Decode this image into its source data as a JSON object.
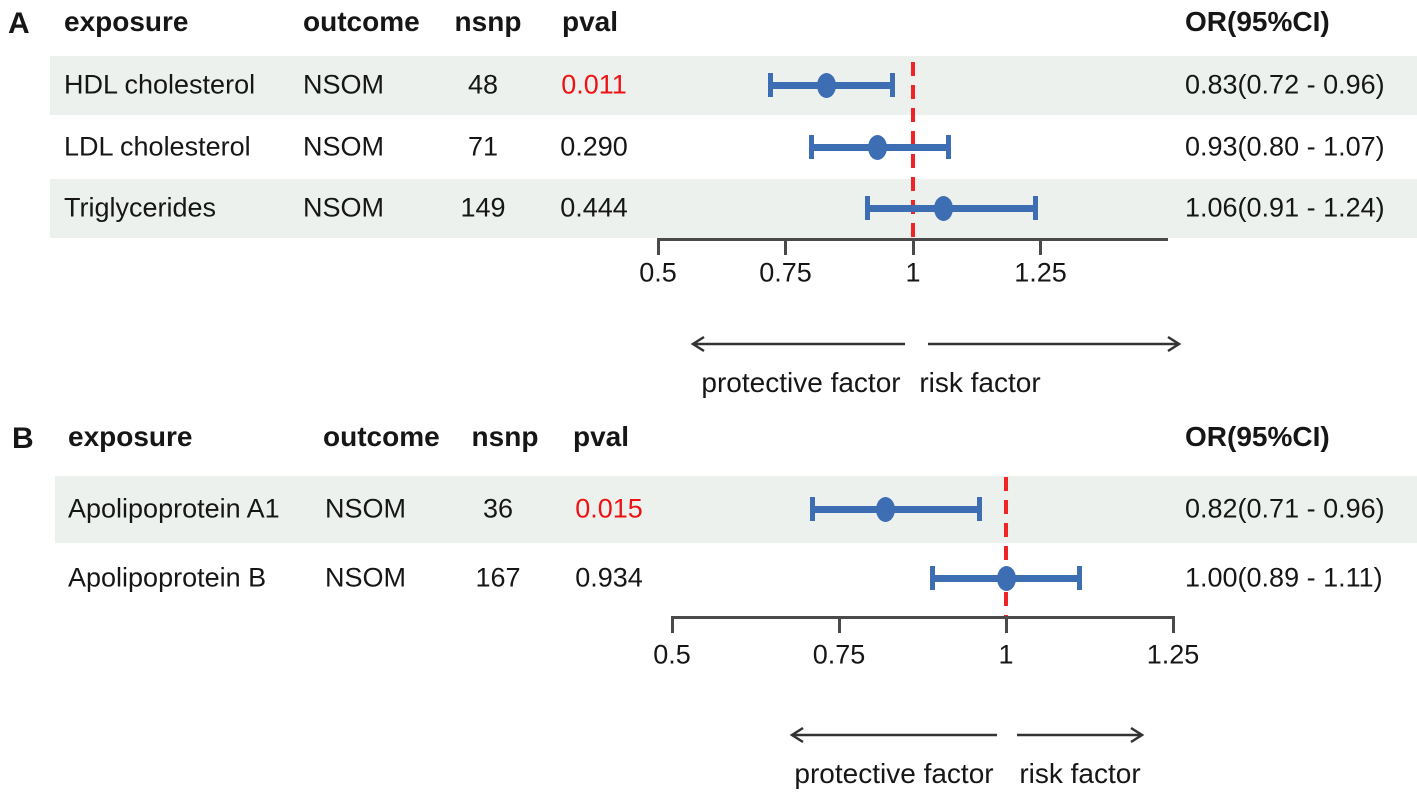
{
  "colors": {
    "marker_blue": "#3d6db3",
    "ref_line_red": "#ee2524",
    "pval_highlight_red": "#ee1313",
    "band_gray": "#edf1ee",
    "text": "#161616",
    "axis": "#4a4a4a",
    "arrow": "#333333"
  },
  "chart_data": [
    {
      "type": "forest",
      "panel_label": "A",
      "columns": {
        "exposure": "exposure",
        "outcome": "outcome",
        "nsnp": "nsnp",
        "pval": "pval",
        "or_ci": "OR(95%CI)"
      },
      "rows": [
        {
          "exposure": "HDL cholesterol",
          "outcome": "NSOM",
          "nsnp": "48",
          "pval": "0.011",
          "pval_highlighted": true,
          "or_label": "0.83(0.72 - 0.96)",
          "or": 0.83,
          "ci_low": 0.72,
          "ci_high": 0.96,
          "shaded": true
        },
        {
          "exposure": "LDL cholesterol",
          "outcome": "NSOM",
          "nsnp": "71",
          "pval": "0.290",
          "pval_highlighted": false,
          "or_label": "0.93(0.80 - 1.07)",
          "or": 0.93,
          "ci_low": 0.8,
          "ci_high": 1.07,
          "shaded": false
        },
        {
          "exposure": "Triglycerides",
          "outcome": "NSOM",
          "nsnp": "149",
          "pval": "0.444",
          "pval_highlighted": false,
          "or_label": "1.06(0.91 - 1.24)",
          "or": 1.06,
          "ci_low": 0.91,
          "ci_high": 1.24,
          "shaded": true
        }
      ],
      "axis": {
        "tick_labels": [
          "0.5",
          "0.75",
          "1",
          "1.25"
        ],
        "tick_values": [
          0.5,
          0.75,
          1,
          1.25
        ],
        "ref_value": 1,
        "xlim": [
          0.5,
          1.5
        ]
      },
      "annotations": {
        "left_arrow_label": "protective factor",
        "right_arrow_label": "risk factor"
      }
    },
    {
      "type": "forest",
      "panel_label": "B",
      "columns": {
        "exposure": "exposure",
        "outcome": "outcome",
        "nsnp": "nsnp",
        "pval": "pval",
        "or_ci": "OR(95%CI)"
      },
      "rows": [
        {
          "exposure": "Apolipoprotein A1",
          "outcome": "NSOM",
          "nsnp": "36",
          "pval": "0.015",
          "pval_highlighted": true,
          "or_label": "0.82(0.71 - 0.96)",
          "or": 0.82,
          "ci_low": 0.71,
          "ci_high": 0.96,
          "shaded": true
        },
        {
          "exposure": "Apolipoprotein B",
          "outcome": "NSOM",
          "nsnp": "167",
          "pval": "0.934",
          "pval_highlighted": false,
          "or_label": "1.00(0.89 - 1.11)",
          "or": 1.0,
          "ci_low": 0.89,
          "ci_high": 1.11,
          "shaded": false
        }
      ],
      "axis": {
        "tick_labels": [
          "0.5",
          "0.75",
          "1",
          "1.25"
        ],
        "tick_values": [
          0.5,
          0.75,
          1,
          1.25
        ],
        "ref_value": 1,
        "xlim": [
          0.5,
          1.25
        ]
      },
      "annotations": {
        "left_arrow_label": "protective factor",
        "right_arrow_label": "risk factor"
      }
    }
  ]
}
